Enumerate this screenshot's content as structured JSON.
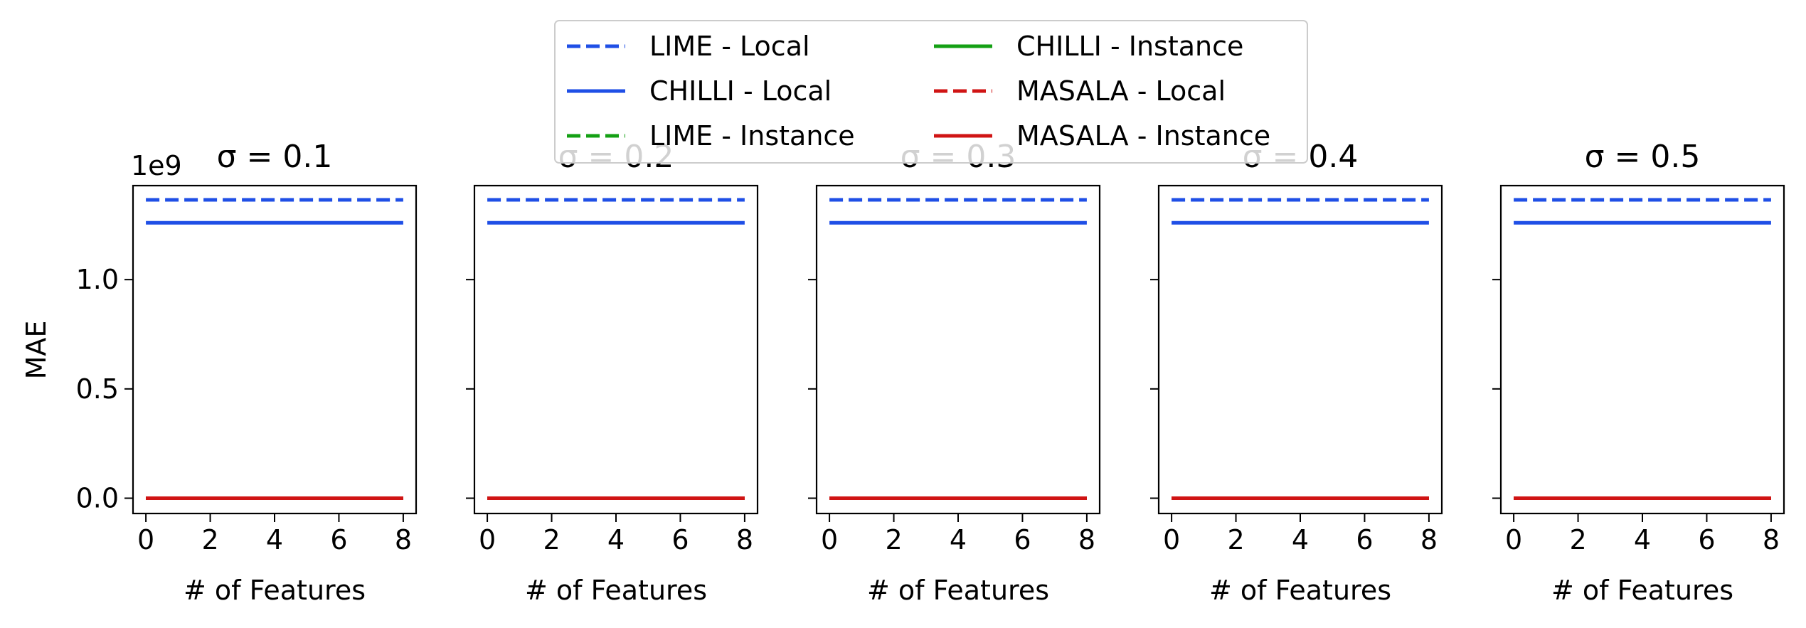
{
  "chart_data": {
    "type": "line",
    "legend_placement": "upper-center",
    "legend_entries": [
      {
        "label": "LIME - Local",
        "color": "#1f4fe6",
        "dash": "dashed"
      },
      {
        "label": "CHILLI - Local",
        "color": "#1f4fe6",
        "dash": "solid"
      },
      {
        "label": "LIME - Instance",
        "color": "#14a014",
        "dash": "dashed"
      },
      {
        "label": "CHILLI - Instance",
        "color": "#14a014",
        "dash": "solid"
      },
      {
        "label": "MASALA - Local",
        "color": "#d01414",
        "dash": "dashed"
      },
      {
        "label": "MASALA - Instance",
        "color": "#d01414",
        "dash": "solid"
      }
    ],
    "ylabel": "MAE",
    "y_offset_text": "1e9",
    "ylim": [
      -0.07,
      1.43
    ],
    "yticks": [
      0.0,
      0.5,
      1.0
    ],
    "ytick_labels": [
      "0.0",
      "0.5",
      "1.0"
    ],
    "xlim": [
      -0.4,
      8.4
    ],
    "xticks": [
      0,
      2,
      4,
      6,
      8
    ],
    "xtick_labels": [
      "0",
      "2",
      "4",
      "6",
      "8"
    ],
    "xlabel": "# of Features",
    "grid": false,
    "subplots": [
      {
        "title": "σ = 0.1",
        "series": [
          {
            "name": "LIME - Local",
            "x": [
              0,
              8
            ],
            "y": [
              1.365,
              1.365
            ]
          },
          {
            "name": "CHILLI - Local",
            "x": [
              0,
              8
            ],
            "y": [
              1.26,
              1.26
            ]
          },
          {
            "name": "LIME - Instance",
            "x": [
              0,
              8
            ],
            "y": [
              0.0,
              0.0
            ]
          },
          {
            "name": "CHILLI - Instance",
            "x": [
              0,
              8
            ],
            "y": [
              0.0,
              0.0
            ]
          },
          {
            "name": "MASALA - Local",
            "x": [
              0,
              8
            ],
            "y": [
              0.0,
              0.0
            ]
          },
          {
            "name": "MASALA - Instance",
            "x": [
              0,
              8
            ],
            "y": [
              0.0,
              0.0
            ]
          }
        ]
      },
      {
        "title": "σ = 0.2",
        "series": [
          {
            "name": "LIME - Local",
            "x": [
              0,
              8
            ],
            "y": [
              1.365,
              1.365
            ]
          },
          {
            "name": "CHILLI - Local",
            "x": [
              0,
              8
            ],
            "y": [
              1.26,
              1.26
            ]
          },
          {
            "name": "LIME - Instance",
            "x": [
              0,
              8
            ],
            "y": [
              0.0,
              0.0
            ]
          },
          {
            "name": "CHILLI - Instance",
            "x": [
              0,
              8
            ],
            "y": [
              0.0,
              0.0
            ]
          },
          {
            "name": "MASALA - Local",
            "x": [
              0,
              8
            ],
            "y": [
              0.0,
              0.0
            ]
          },
          {
            "name": "MASALA - Instance",
            "x": [
              0,
              8
            ],
            "y": [
              0.0,
              0.0
            ]
          }
        ]
      },
      {
        "title": "σ = 0.3",
        "series": [
          {
            "name": "LIME - Local",
            "x": [
              0,
              8
            ],
            "y": [
              1.365,
              1.365
            ]
          },
          {
            "name": "CHILLI - Local",
            "x": [
              0,
              8
            ],
            "y": [
              1.26,
              1.26
            ]
          },
          {
            "name": "LIME - Instance",
            "x": [
              0,
              8
            ],
            "y": [
              0.0,
              0.0
            ]
          },
          {
            "name": "CHILLI - Instance",
            "x": [
              0,
              8
            ],
            "y": [
              0.0,
              0.0
            ]
          },
          {
            "name": "MASALA - Local",
            "x": [
              0,
              8
            ],
            "y": [
              0.0,
              0.0
            ]
          },
          {
            "name": "MASALA - Instance",
            "x": [
              0,
              8
            ],
            "y": [
              0.0,
              0.0
            ]
          }
        ]
      },
      {
        "title": "σ = 0.4",
        "series": [
          {
            "name": "LIME - Local",
            "x": [
              0,
              8
            ],
            "y": [
              1.365,
              1.365
            ]
          },
          {
            "name": "CHILLI - Local",
            "x": [
              0,
              8
            ],
            "y": [
              1.26,
              1.26
            ]
          },
          {
            "name": "LIME - Instance",
            "x": [
              0,
              8
            ],
            "y": [
              0.0,
              0.0
            ]
          },
          {
            "name": "CHILLI - Instance",
            "x": [
              0,
              8
            ],
            "y": [
              0.0,
              0.0
            ]
          },
          {
            "name": "MASALA - Local",
            "x": [
              0,
              8
            ],
            "y": [
              0.0,
              0.0
            ]
          },
          {
            "name": "MASALA - Instance",
            "x": [
              0,
              8
            ],
            "y": [
              0.0,
              0.0
            ]
          }
        ]
      },
      {
        "title": "σ = 0.5",
        "series": [
          {
            "name": "LIME - Local",
            "x": [
              0,
              8
            ],
            "y": [
              1.365,
              1.365
            ]
          },
          {
            "name": "CHILLI - Local",
            "x": [
              0,
              8
            ],
            "y": [
              1.26,
              1.26
            ]
          },
          {
            "name": "LIME - Instance",
            "x": [
              0,
              8
            ],
            "y": [
              0.0,
              0.0
            ]
          },
          {
            "name": "CHILLI - Instance",
            "x": [
              0,
              8
            ],
            "y": [
              0.0,
              0.0
            ]
          },
          {
            "name": "MASALA - Local",
            "x": [
              0,
              8
            ],
            "y": [
              0.0,
              0.0
            ]
          },
          {
            "name": "MASALA - Instance",
            "x": [
              0,
              8
            ],
            "y": [
              0.0,
              0.0
            ]
          }
        ]
      }
    ]
  }
}
